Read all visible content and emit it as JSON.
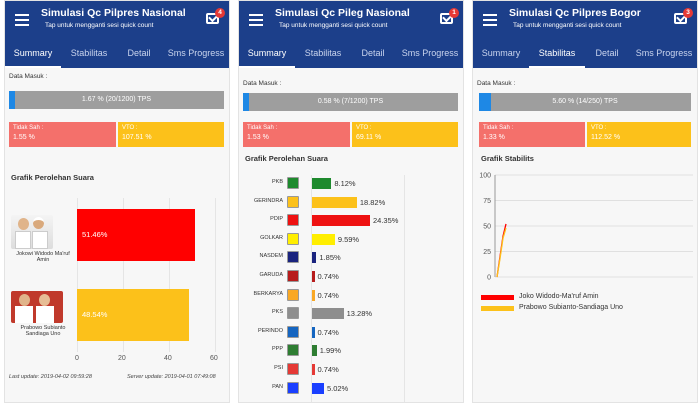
{
  "screens": [
    {
      "title": "Simulasi Qc Pilpres Nasional",
      "subtitle": "Tap untuk mengganti sesi quick count",
      "badge": "4",
      "tabs": [
        "Summary",
        "Stabilitas",
        "Detail",
        "Sms Progress"
      ],
      "active_tab": 0,
      "data_masuk_label": "Data Masuk :",
      "progress_text": "1.67 % (20/1200) TPS",
      "progress": 0.0167,
      "tidak_sah_label": "Tidak Sah :",
      "tidak_sah_value": "1.55 %",
      "vto_label": "VTO :",
      "vto_value": "107.51 %",
      "chart_title": "Grafik Perolehan Suara",
      "candidate_1": "Jokowi Widodo Ma'ruf Amin",
      "candidate_2": "Prabowo Subianto Sandiaga Uno",
      "last_update": "Last update: 2019-04-02 09:59:28",
      "server_update": "Server update: 2019-04-01 07:49:08",
      "colors": {
        "candidate_1": "#ff0000",
        "candidate_2": "#fcc11a"
      }
    },
    {
      "title": "Simulasi Qc Pileg Nasional",
      "subtitle": "Tap untuk mengganti sesi quick count",
      "badge": "1",
      "tabs": [
        "Summary",
        "Stabilitas",
        "Detail",
        "Sms Progress"
      ],
      "active_tab": 0,
      "data_masuk_label": "Data Masuk :",
      "progress_text": "0.58 % (7/1200) TPS",
      "progress": 0.0058,
      "tidak_sah_label": "Tidak Sah :",
      "tidak_sah_value": "1.53 %",
      "vto_label": "VTO :",
      "vto_value": "69.11 %",
      "chart_title": "Grafik Perolehan Suara"
    },
    {
      "title": "Simulasi Qc Pilpres Bogor",
      "subtitle": "Tap untuk mengganti sesi quick count",
      "badge": "3",
      "tabs": [
        "Summary",
        "Stabilitas",
        "Detail",
        "Sms Progress"
      ],
      "active_tab": 1,
      "data_masuk_label": "Data Masuk :",
      "progress_text": "5.60 % (14/250) TPS",
      "progress": 0.056,
      "tidak_sah_label": "Tidak Sah :",
      "tidak_sah_value": "1.33 %",
      "vto_label": "VTO :",
      "vto_value": "112.52 %",
      "chart_title": "Grafik Stabilits",
      "legend": [
        "Joko Widodo-Ma'ruf Amin",
        "Prabowo Subianto-Sandiaga Uno"
      ]
    }
  ],
  "chart_data": [
    {
      "type": "bar",
      "orientation": "horizontal",
      "title": "Grafik Perolehan Suara",
      "categories": [
        "Jokowi Widodo Ma'ruf Amin",
        "Prabowo Subianto Sandiaga Uno"
      ],
      "values": [
        51.46,
        48.54
      ],
      "value_labels": [
        "51.46%",
        "48.54%"
      ],
      "xlim": [
        0,
        60
      ],
      "xticks": [
        "0",
        "20",
        "40",
        "60"
      ],
      "colors": [
        "#ff0000",
        "#fcc11a"
      ]
    },
    {
      "type": "bar",
      "orientation": "horizontal",
      "title": "Grafik Perolehan Suara",
      "categories": [
        "PKB",
        "GERINDRA",
        "PDIP",
        "GOLKAR",
        "NASDEM",
        "GARUDA",
        "BERKARYA",
        "PKS",
        "PERINDO",
        "PPP",
        "PSI",
        "PAN"
      ],
      "values": [
        8.12,
        18.82,
        24.35,
        9.59,
        1.85,
        0.74,
        0.74,
        13.28,
        0.74,
        1.99,
        0.74,
        5.02
      ],
      "value_labels": [
        "8.12%",
        "18.82%",
        "24.35%",
        "9.59%",
        "1.85%",
        "0.74%",
        "0.74%",
        "13.28%",
        "0.74%",
        "1.99%",
        "0.74%",
        "5.02%"
      ],
      "colors": [
        "#1e8a2e",
        "#fcc11a",
        "#ee1111",
        "#ffee00",
        "#1a237e",
        "#b71c1c",
        "#f9a825",
        "#8e8e8e",
        "#1565c0",
        "#2e7d32",
        "#e53935",
        "#1a3fff"
      ]
    },
    {
      "type": "line",
      "title": "Grafik Stabilits",
      "ylim": [
        0,
        100
      ],
      "yticks": [
        "0",
        "25",
        "50",
        "75",
        "100"
      ],
      "series": [
        {
          "name": "Joko Widodo-Ma'ruf Amin",
          "color": "#ff0000",
          "x": [
            0,
            1,
            2,
            3
          ],
          "y": [
            0,
            20,
            40,
            52
          ]
        },
        {
          "name": "Prabowo Subianto-Sandiaga Uno",
          "color": "#fcc11a",
          "x": [
            0,
            1,
            2,
            3
          ],
          "y": [
            0,
            18,
            38,
            48
          ]
        }
      ]
    }
  ]
}
